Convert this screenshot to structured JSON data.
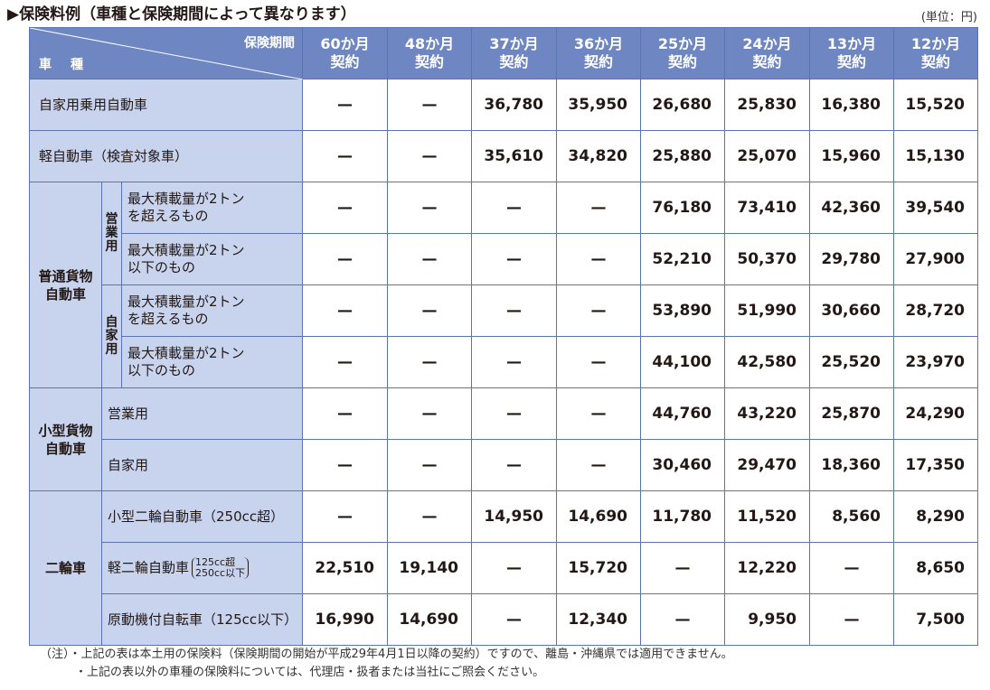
{
  "title": "▶保険料例（車種と保険期間によって異なります）",
  "unit": "(単位：円)",
  "header": {
    "period_label": "保険期間",
    "type_label": "車　種",
    "periods": [
      [
        "60か月",
        "契約"
      ],
      [
        "48か月",
        "契約"
      ],
      [
        "37か月",
        "契約"
      ],
      [
        "36か月",
        "契約"
      ],
      [
        "25か月",
        "契約"
      ],
      [
        "24か月",
        "契約"
      ],
      [
        "13か月",
        "契約"
      ],
      [
        "12か月",
        "契約"
      ]
    ]
  },
  "labels": {
    "jikayo_jouyou": "自家用乗用自動車",
    "kei": "軽自動車（検査対象車）",
    "futsu": [
      "普通貨物",
      "自動車"
    ],
    "eigyo_v": [
      "営",
      "業",
      "用"
    ],
    "jika_v": [
      "自",
      "家",
      "用"
    ],
    "over2t": [
      "最大積載量が2トン",
      "を超えるもの"
    ],
    "under2t": [
      "最大積載量が2トン",
      "以下のもの"
    ],
    "kogata": [
      "小型貨物",
      "自動車"
    ],
    "eigyo": "営業用",
    "jika": "自家用",
    "nirin": "二輪車",
    "kogata_nirin": "小型二輪自動車（250cc超）",
    "kei_nirin": "軽二輪自動車",
    "kei_nirin_note": [
      "125cc超",
      "250cc以下"
    ],
    "gentsuki": "原動機付自転車（125cc以下）"
  },
  "chart_data": {
    "type": "table",
    "title": "保険料例（車種と保険期間によって異なります）",
    "columns": [
      "60か月契約",
      "48か月契約",
      "37か月契約",
      "36か月契約",
      "25か月契約",
      "24か月契約",
      "13か月契約",
      "12か月契約"
    ],
    "rows": [
      {
        "category": "自家用乗用自動車",
        "values": [
          "—",
          "—",
          "36,780",
          "35,950",
          "26,680",
          "25,830",
          "16,380",
          "15,520"
        ]
      },
      {
        "category": "軽自動車（検査対象車）",
        "values": [
          "—",
          "—",
          "35,610",
          "34,820",
          "25,880",
          "25,070",
          "15,960",
          "15,130"
        ]
      },
      {
        "category": "普通貨物自動車 営業用 最大積載量が2トンを超えるもの",
        "values": [
          "—",
          "—",
          "—",
          "—",
          "76,180",
          "73,410",
          "42,360",
          "39,540"
        ]
      },
      {
        "category": "普通貨物自動車 営業用 最大積載量が2トン以下のもの",
        "values": [
          "—",
          "—",
          "—",
          "—",
          "52,210",
          "50,370",
          "29,780",
          "27,900"
        ]
      },
      {
        "category": "普通貨物自動車 自家用 最大積載量が2トンを超えるもの",
        "values": [
          "—",
          "—",
          "—",
          "—",
          "53,890",
          "51,990",
          "30,660",
          "28,720"
        ]
      },
      {
        "category": "普通貨物自動車 自家用 最大積載量が2トン以下のもの",
        "values": [
          "—",
          "—",
          "—",
          "—",
          "44,100",
          "42,580",
          "25,520",
          "23,970"
        ]
      },
      {
        "category": "小型貨物自動車 営業用",
        "values": [
          "—",
          "—",
          "—",
          "—",
          "44,760",
          "43,220",
          "25,870",
          "24,290"
        ]
      },
      {
        "category": "小型貨物自動車 自家用",
        "values": [
          "—",
          "—",
          "—",
          "—",
          "30,460",
          "29,470",
          "18,360",
          "17,350"
        ]
      },
      {
        "category": "二輪車 小型二輪自動車（250cc超）",
        "values": [
          "—",
          "—",
          "14,950",
          "14,690",
          "11,780",
          "11,520",
          "8,560",
          "8,290"
        ]
      },
      {
        "category": "二輪車 軽二輪自動車（125cc超250cc以下）",
        "values": [
          "22,510",
          "19,140",
          "—",
          "15,720",
          "—",
          "12,220",
          "—",
          "8,650"
        ]
      },
      {
        "category": "二輪車 原動機付自転車（125cc以下）",
        "values": [
          "16,990",
          "14,690",
          "—",
          "12,340",
          "—",
          "9,950",
          "—",
          "7,500"
        ]
      }
    ]
  },
  "notes": [
    "（注）・上記の表は本土用の保険料（保険期間の開始が平成29年4月1日以降の契約）ですので、離島・沖縄県では適用できません。",
    "　　　・上記の表以外の車種の保険料については、代理店・扱者または当社にご照会ください。"
  ]
}
